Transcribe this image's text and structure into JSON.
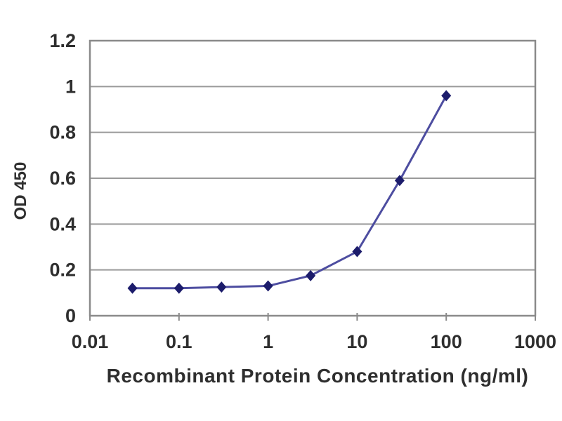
{
  "chart_data": {
    "type": "line",
    "title": "",
    "xlabel": "Recombinant Protein Concentration (ng/ml)",
    "ylabel": "OD 450",
    "x_scale": "log",
    "x": [
      0.03,
      0.1,
      0.3,
      1,
      3,
      10,
      30,
      100
    ],
    "series": [
      {
        "name": "OD 450",
        "values": [
          0.12,
          0.12,
          0.125,
          0.13,
          0.175,
          0.28,
          0.59,
          0.96
        ]
      }
    ],
    "xlim": [
      0.01,
      1000
    ],
    "ylim": [
      0,
      1.2
    ],
    "x_ticks": [
      "0.01",
      "0.1",
      "1",
      "10",
      "100",
      "1000"
    ],
    "x_tick_values": [
      0.01,
      0.1,
      1,
      10,
      100,
      1000
    ],
    "y_ticks": [
      "0",
      "0.2",
      "0.4",
      "0.6",
      "0.8",
      "1",
      "1.2"
    ],
    "y_tick_values": [
      0,
      0.2,
      0.4,
      0.6,
      0.8,
      1,
      1.2
    ],
    "grid": "horizontal",
    "legend": "none",
    "marker_shape": "diamond",
    "colors": {
      "line": "#4d4da0",
      "marker": "#1c1c6b",
      "grid": "#9a9a9a",
      "border": "#8a8a8a",
      "text": "#2e2e2e",
      "background": "#ffffff"
    }
  }
}
